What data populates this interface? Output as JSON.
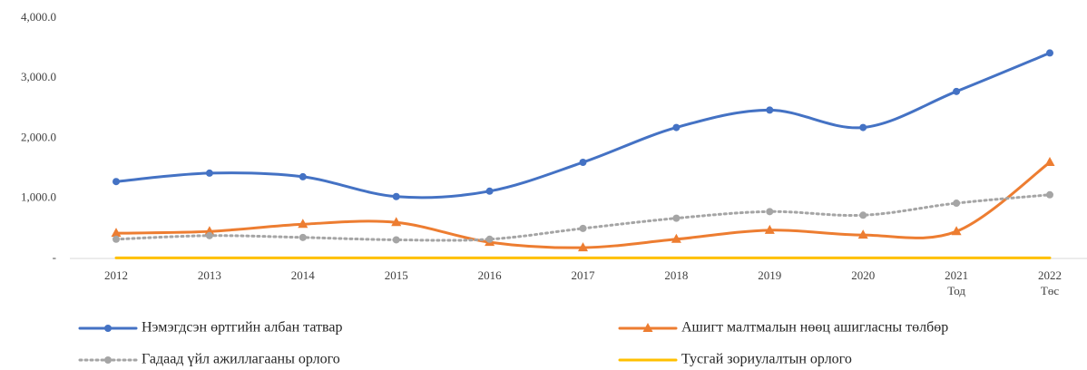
{
  "chart_data": {
    "type": "line",
    "categories": [
      "2012",
      "2013",
      "2014",
      "2015",
      "2016",
      "2017",
      "2018",
      "2019",
      "2020",
      "2021",
      "2022"
    ],
    "category_sublabels": [
      null,
      null,
      null,
      null,
      null,
      null,
      null,
      null,
      null,
      "Тод",
      "Төс"
    ],
    "series": [
      {
        "name": "Нэмэгдсэн өртгийн албан татвар",
        "color": "#4472c4",
        "marker": "circle",
        "line": "solid",
        "values": [
          1280,
          1420,
          1360,
          1030,
          1120,
          1600,
          2180,
          2470,
          2180,
          2780,
          3420
        ]
      },
      {
        "name": "Ашигт малтмалын нөөц ашигласны төлбөр",
        "color": "#ed7d31",
        "marker": "triangle",
        "line": "solid",
        "values": [
          420,
          450,
          570,
          600,
          270,
          180,
          320,
          470,
          390,
          450,
          1600
        ]
      },
      {
        "name": "Гадаад үйл ажиллагааны орлого",
        "color": "#a5a5a5",
        "marker": "circle",
        "line": "dotted",
        "values": [
          320,
          380,
          350,
          310,
          320,
          500,
          670,
          780,
          720,
          920,
          1060
        ]
      },
      {
        "name": "Тусгай зориулалтын орлого",
        "color": "#ffc000",
        "marker": "none",
        "line": "solid",
        "values": [
          10,
          10,
          10,
          10,
          10,
          10,
          10,
          10,
          10,
          10,
          10
        ]
      }
    ],
    "ylim": [
      0,
      4000
    ],
    "yticks": [
      {
        "value": 0,
        "label": "-"
      },
      {
        "value": 1000,
        "label": "1,000.0"
      },
      {
        "value": 2000,
        "label": "2,000.0"
      },
      {
        "value": 3000,
        "label": "3,000.0"
      },
      {
        "value": 4000,
        "label": "4,000.0"
      }
    ],
    "grid": false,
    "legend": "bottom",
    "smooth": true
  }
}
